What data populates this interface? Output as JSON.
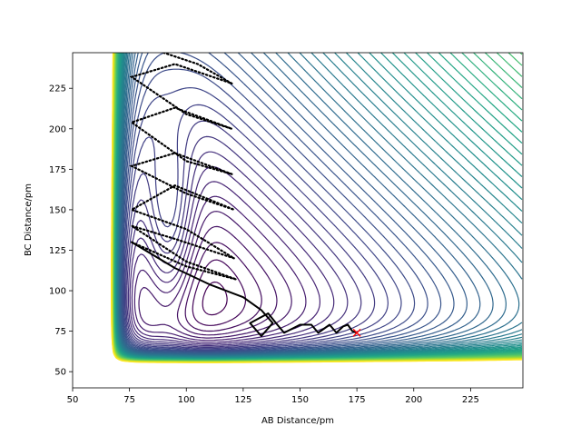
{
  "chart_data": {
    "type": "contour",
    "title": "",
    "xlabel": "AB Distance/pm",
    "ylabel": "BC Distance/pm",
    "xlim": [
      50,
      248
    ],
    "ylim": [
      40,
      247
    ],
    "x_ticks": [
      50,
      75,
      100,
      125,
      150,
      175,
      200,
      225
    ],
    "y_ticks": [
      50,
      75,
      100,
      125,
      150,
      175,
      200,
      225
    ],
    "x_tick_labels": [
      "50",
      "75",
      "100",
      "125",
      "150",
      "175",
      "200",
      "225"
    ],
    "y_tick_labels": [
      "50",
      "75",
      "100",
      "125",
      "150",
      "175",
      "200",
      "225"
    ],
    "colormap": "viridis",
    "contour_levels": 58,
    "potential_minimum": {
      "ab": 92,
      "bc": 138
    },
    "trajectory": {
      "color": "#000000",
      "start": {
        "ab": 76,
        "bc": 130
      },
      "end": {
        "ab": 175,
        "bc": 74
      },
      "oscillation_turns_bc": [
        232,
        204,
        177,
        150,
        140
      ]
    },
    "end_marker": {
      "symbol": "x",
      "color": "#ff0000",
      "ab": 175,
      "bc": 74
    }
  }
}
